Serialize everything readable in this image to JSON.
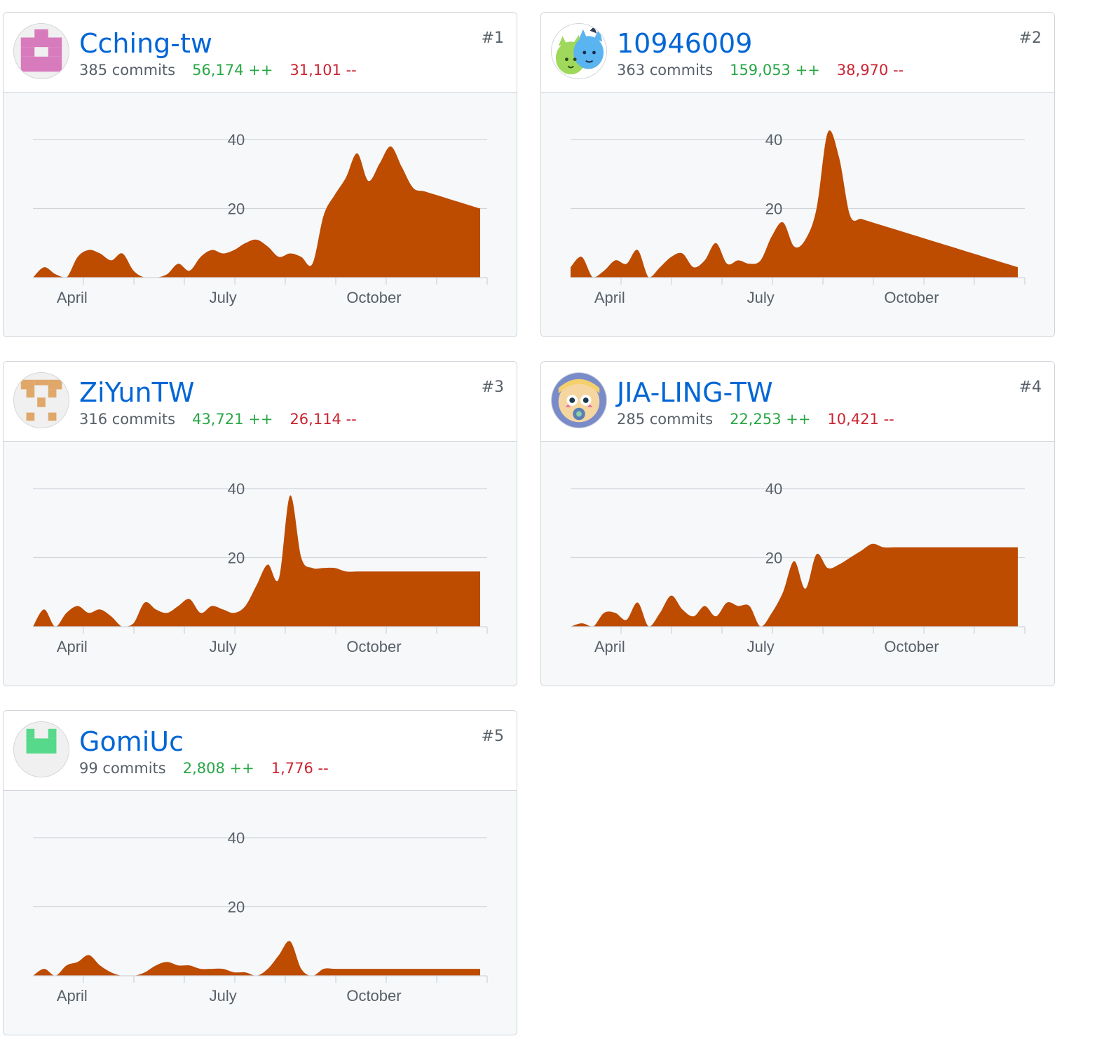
{
  "contributors": [
    {
      "name": "Cching-tw",
      "rank": "#1",
      "commits": "385 commits",
      "additions": "56,174 ++",
      "deletions": "31,101 --",
      "avatar_icon": "identicon-pink",
      "avatar_color": "#d87bbd"
    },
    {
      "name": "10946009",
      "rank": "#2",
      "commits": "363 commits",
      "additions": "159,053 ++",
      "deletions": "38,970 --",
      "avatar_icon": "cartoon-dinosaur-cat-avatar",
      "avatar_color": "#5ab4f0"
    },
    {
      "name": "ZiYunTW",
      "rank": "#3",
      "commits": "316 commits",
      "additions": "43,721 ++",
      "deletions": "26,114 --",
      "avatar_icon": "identicon-tan",
      "avatar_color": "#dfa86a"
    },
    {
      "name": "JIA-LING-TW",
      "rank": "#4",
      "commits": "285 commits",
      "additions": "22,253 ++",
      "deletions": "10,421 --",
      "avatar_icon": "cartoon-star-girl-avatar",
      "avatar_color": "#f3d06b"
    },
    {
      "name": "GomiUc",
      "rank": "#5",
      "commits": "99 commits",
      "additions": "2,808 ++",
      "deletions": "1,776 --",
      "avatar_icon": "identicon-green",
      "avatar_color": "#56d98a"
    }
  ],
  "chart_data": [
    {
      "type": "area",
      "series_color": "#bd4b00",
      "ylim": [
        0,
        40
      ],
      "yticks": [
        "20",
        "40"
      ],
      "xticks": [
        "April",
        "July",
        "October"
      ],
      "xtick_positions": [
        3.5,
        17,
        30.5
      ],
      "x": [
        0,
        1,
        2,
        3,
        4,
        5,
        6,
        7,
        8,
        9,
        10,
        11,
        12,
        13,
        14,
        15,
        16,
        17,
        18,
        19,
        20,
        21,
        22,
        23,
        24,
        25,
        26,
        27,
        28,
        29,
        30,
        31,
        32,
        33,
        34,
        35,
        36,
        37,
        38,
        39,
        40
      ],
      "values": [
        0,
        3,
        1,
        0,
        6,
        8,
        7,
        5,
        7,
        2,
        0,
        0,
        1,
        4,
        2,
        6,
        8,
        7,
        8,
        10,
        11,
        9,
        6,
        7,
        6,
        4,
        18,
        24,
        29,
        36,
        28,
        33,
        38,
        32,
        26,
        25,
        24,
        23,
        22,
        21,
        20
      ]
    },
    {
      "type": "area",
      "series_color": "#bd4b00",
      "ylim": [
        0,
        40
      ],
      "yticks": [
        "20",
        "40"
      ],
      "xticks": [
        "April",
        "July",
        "October"
      ],
      "xtick_positions": [
        3.5,
        17,
        30.5
      ],
      "x": [
        0,
        1,
        2,
        3,
        4,
        5,
        6,
        7,
        8,
        9,
        10,
        11,
        12,
        13,
        14,
        15,
        16,
        17,
        18,
        19,
        20,
        21,
        22,
        23,
        24,
        25,
        26,
        27,
        28,
        29,
        30,
        31,
        32,
        33,
        34,
        35,
        36,
        37,
        38,
        39,
        40
      ],
      "values": [
        3,
        6,
        0,
        2,
        5,
        4,
        8,
        0,
        3,
        6,
        7,
        3,
        5,
        10,
        4,
        5,
        4,
        5,
        12,
        16,
        9,
        11,
        20,
        42,
        35,
        18,
        17,
        16,
        15,
        14,
        13,
        12,
        11,
        10,
        9,
        8,
        7,
        6,
        5,
        4,
        3
      ]
    },
    {
      "type": "area",
      "series_color": "#bd4b00",
      "ylim": [
        0,
        40
      ],
      "yticks": [
        "20",
        "40"
      ],
      "xticks": [
        "April",
        "July",
        "October"
      ],
      "xtick_positions": [
        3.5,
        17,
        30.5
      ],
      "x": [
        0,
        1,
        2,
        3,
        4,
        5,
        6,
        7,
        8,
        9,
        10,
        11,
        12,
        13,
        14,
        15,
        16,
        17,
        18,
        19,
        20,
        21,
        22,
        23,
        24,
        25,
        26,
        27,
        28,
        29,
        30,
        31,
        32,
        33,
        34,
        35,
        36,
        37,
        38,
        39,
        40
      ],
      "values": [
        0,
        5,
        0,
        4,
        6,
        4,
        5,
        3,
        0,
        1,
        7,
        5,
        4,
        6,
        8,
        4,
        6,
        5,
        4,
        6,
        12,
        18,
        14,
        38,
        20,
        17,
        17,
        17,
        16,
        16,
        16,
        16,
        16,
        16,
        16,
        16,
        16,
        16,
        16,
        16,
        16
      ]
    },
    {
      "type": "area",
      "series_color": "#bd4b00",
      "ylim": [
        0,
        40
      ],
      "yticks": [
        "20",
        "40"
      ],
      "xticks": [
        "April",
        "July",
        "October"
      ],
      "xtick_positions": [
        3.5,
        17,
        30.5
      ],
      "x": [
        0,
        1,
        2,
        3,
        4,
        5,
        6,
        7,
        8,
        9,
        10,
        11,
        12,
        13,
        14,
        15,
        16,
        17,
        18,
        19,
        20,
        21,
        22,
        23,
        24,
        25,
        26,
        27,
        28,
        29,
        30,
        31,
        32,
        33,
        34,
        35,
        36,
        37,
        38,
        39,
        40
      ],
      "values": [
        0,
        1,
        0,
        4,
        4,
        2,
        7,
        0,
        4,
        9,
        5,
        3,
        6,
        3,
        7,
        6,
        6,
        0,
        4,
        10,
        19,
        11,
        21,
        17,
        18,
        20,
        22,
        24,
        23,
        23,
        23,
        23,
        23,
        23,
        23,
        23,
        23,
        23,
        23,
        23,
        23
      ]
    },
    {
      "type": "area",
      "series_color": "#bd4b00",
      "ylim": [
        0,
        40
      ],
      "yticks": [
        "20",
        "40"
      ],
      "xticks": [
        "April",
        "July",
        "October"
      ],
      "xtick_positions": [
        3.5,
        17,
        30.5
      ],
      "x": [
        0,
        1,
        2,
        3,
        4,
        5,
        6,
        7,
        8,
        9,
        10,
        11,
        12,
        13,
        14,
        15,
        16,
        17,
        18,
        19,
        20,
        21,
        22,
        23,
        24,
        25,
        26,
        27,
        28,
        29,
        30,
        31,
        32,
        33,
        34,
        35,
        36,
        37,
        38,
        39,
        40
      ],
      "values": [
        0,
        2,
        0,
        3,
        4,
        6,
        3,
        1,
        0,
        0,
        1,
        3,
        4,
        3,
        3,
        2,
        2,
        2,
        1,
        1,
        0,
        2,
        6,
        10,
        2,
        0,
        2,
        2,
        2,
        2,
        2,
        2,
        2,
        2,
        2,
        2,
        2,
        2,
        2,
        2,
        2
      ]
    }
  ]
}
